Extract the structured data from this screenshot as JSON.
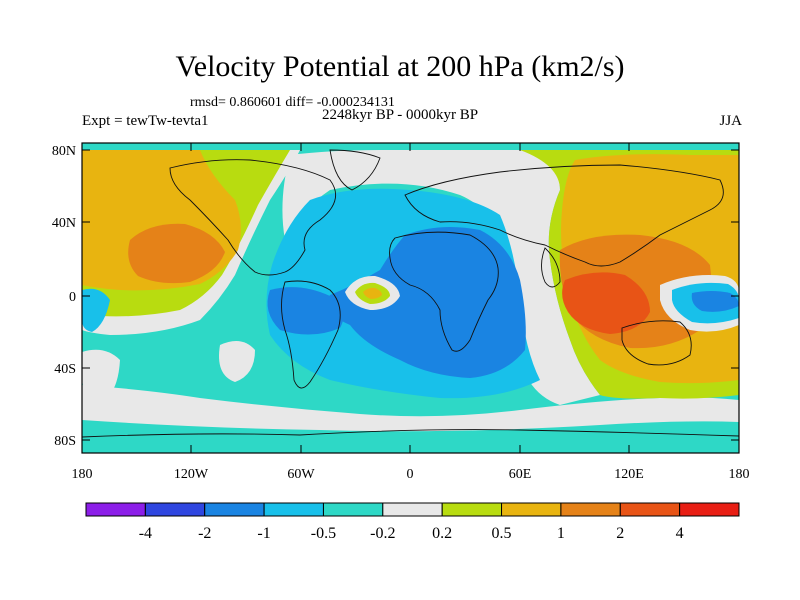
{
  "title": "Velocity Potential at 200 hPa (km2/s)",
  "stats": "rmsd= 0.860601 diff= -0.000234131",
  "subtitle": "2248kyr BP - 0000kyr BP",
  "experiment": "Expt = tewTw-tevta1",
  "season": "JJA",
  "map": {
    "projection": "cylindrical-equidistant",
    "lon_range": [
      -180,
      180
    ],
    "lat_range": [
      -90,
      90
    ],
    "background_level_color": "#2ed8c6"
  },
  "axes": {
    "y_ticks": [
      "80N",
      "40N",
      "0",
      "40S",
      "80S"
    ],
    "x_ticks": [
      "180",
      "120W",
      "60W",
      "0",
      "60E",
      "120E",
      "180"
    ]
  },
  "colorbar": {
    "colors": [
      "#8c1ee8",
      "#2f46e0",
      "#1a84e2",
      "#18c0ea",
      "#2ed8c6",
      "#e8e8e8",
      "#b8dc10",
      "#e8b410",
      "#e58218",
      "#e85416",
      "#e81e14"
    ],
    "labels": [
      "-4",
      "-2",
      "-1",
      "-0.5",
      "-0.2",
      "0.2",
      "0.5",
      "1",
      "2",
      "4"
    ]
  }
}
